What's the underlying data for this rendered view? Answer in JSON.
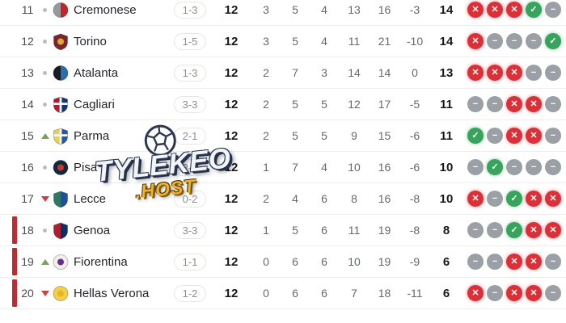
{
  "watermark": {
    "line1": "TYLEKEO",
    "line2": ".HOST"
  },
  "form_icons": {
    "W": {
      "name": "form-win-icon",
      "glyph": "✓",
      "color": "#37a35c"
    },
    "D": {
      "name": "form-draw-icon",
      "glyph": "−",
      "color": "#9aa0a5"
    },
    "L": {
      "name": "form-loss-icon",
      "glyph": "✕",
      "color": "#dc3038"
    }
  },
  "movement_colors": {
    "up": "#79a258",
    "down": "#c84444",
    "same": "#b9bdc2"
  },
  "relegation_bar_color": "#c22a33",
  "rows": [
    {
      "pos": "11",
      "movement": "same",
      "team": "Cremonese",
      "badge": {
        "shape": "circle",
        "left": "#98999d",
        "right": "#c2242c"
      },
      "last": "1-3",
      "mp": "12",
      "w": "3",
      "d": "5",
      "l": "4",
      "gf": "13",
      "ga": "16",
      "gd": "-3",
      "pts": "14",
      "form": [
        "L",
        "L",
        "L",
        "W",
        "D"
      ],
      "relegation": false
    },
    {
      "pos": "12",
      "movement": "same",
      "team": "Torino",
      "badge": {
        "shape": "shield",
        "left": "#7e222b",
        "right": "#7e222b",
        "detail": "#d9a93c"
      },
      "last": "1-5",
      "mp": "12",
      "w": "3",
      "d": "5",
      "l": "4",
      "gf": "11",
      "ga": "21",
      "gd": "-10",
      "pts": "14",
      "form": [
        "L",
        "D",
        "D",
        "D",
        "W"
      ],
      "relegation": false
    },
    {
      "pos": "13",
      "movement": "same",
      "team": "Atalanta",
      "badge": {
        "shape": "circle",
        "left": "#1a1b20",
        "right": "#2e6cb2"
      },
      "last": "1-3",
      "mp": "12",
      "w": "2",
      "d": "7",
      "l": "3",
      "gf": "14",
      "ga": "14",
      "gd": "0",
      "pts": "13",
      "form": [
        "L",
        "L",
        "L",
        "D",
        "D"
      ],
      "relegation": false
    },
    {
      "pos": "14",
      "movement": "same",
      "team": "Cagliari",
      "badge": {
        "shape": "shield",
        "left": "#b01e2e",
        "right": "#16337a",
        "cross": "#ffffff"
      },
      "last": "3-3",
      "mp": "12",
      "w": "2",
      "d": "5",
      "l": "5",
      "gf": "12",
      "ga": "17",
      "gd": "-5",
      "pts": "11",
      "form": [
        "D",
        "D",
        "L",
        "L",
        "D"
      ],
      "relegation": false
    },
    {
      "pos": "15",
      "movement": "up",
      "team": "Parma",
      "badge": {
        "shape": "shield",
        "left": "#e9d24a",
        "right": "#2b57a5",
        "cross": "#f5f5f5"
      },
      "last": "2-1",
      "mp": "12",
      "w": "2",
      "d": "5",
      "l": "5",
      "gf": "9",
      "ga": "15",
      "gd": "-6",
      "pts": "11",
      "form": [
        "W",
        "D",
        "L",
        "L",
        "D"
      ],
      "relegation": false
    },
    {
      "pos": "16",
      "movement": "same",
      "team": "Pisa",
      "badge": {
        "shape": "circle",
        "left": "#132742",
        "right": "#132742",
        "detail": "#c0392b"
      },
      "last": "2-2",
      "mp": "12",
      "w": "1",
      "d": "7",
      "l": "4",
      "gf": "10",
      "ga": "16",
      "gd": "-6",
      "pts": "10",
      "form": [
        "D",
        "W",
        "D",
        "D",
        "D"
      ],
      "relegation": false
    },
    {
      "pos": "17",
      "movement": "down",
      "team": "Lecce",
      "badge": {
        "shape": "shield",
        "left": "#2c7a66",
        "right": "#1c4f9e"
      },
      "last": "0-2",
      "mp": "12",
      "w": "2",
      "d": "4",
      "l": "6",
      "gf": "8",
      "ga": "16",
      "gd": "-8",
      "pts": "10",
      "form": [
        "L",
        "D",
        "W",
        "L",
        "L"
      ],
      "relegation": false
    },
    {
      "pos": "18",
      "movement": "same",
      "team": "Genoa",
      "badge": {
        "shape": "shield",
        "left": "#b01e2e",
        "right": "#122d66"
      },
      "last": "3-3",
      "mp": "12",
      "w": "1",
      "d": "5",
      "l": "6",
      "gf": "11",
      "ga": "19",
      "gd": "-8",
      "pts": "8",
      "form": [
        "D",
        "D",
        "W",
        "L",
        "L"
      ],
      "relegation": true
    },
    {
      "pos": "19",
      "movement": "up",
      "team": "Fiorentina",
      "badge": {
        "shape": "circle",
        "left": "#f2efe9",
        "right": "#f2efe9",
        "detail": "#6a2d8f"
      },
      "last": "1-1",
      "mp": "12",
      "w": "0",
      "d": "6",
      "l": "6",
      "gf": "10",
      "ga": "19",
      "gd": "-9",
      "pts": "6",
      "form": [
        "D",
        "D",
        "L",
        "L",
        "D"
      ],
      "relegation": true
    },
    {
      "pos": "20",
      "movement": "down",
      "team": "Hellas Verona",
      "badge": {
        "shape": "circle",
        "left": "#f5cf46",
        "right": "#f5cf46",
        "detail": "#e8b824"
      },
      "last": "1-2",
      "mp": "12",
      "w": "0",
      "d": "6",
      "l": "6",
      "gf": "7",
      "ga": "18",
      "gd": "-11",
      "pts": "6",
      "form": [
        "L",
        "D",
        "L",
        "L",
        "D"
      ],
      "relegation": true
    }
  ]
}
